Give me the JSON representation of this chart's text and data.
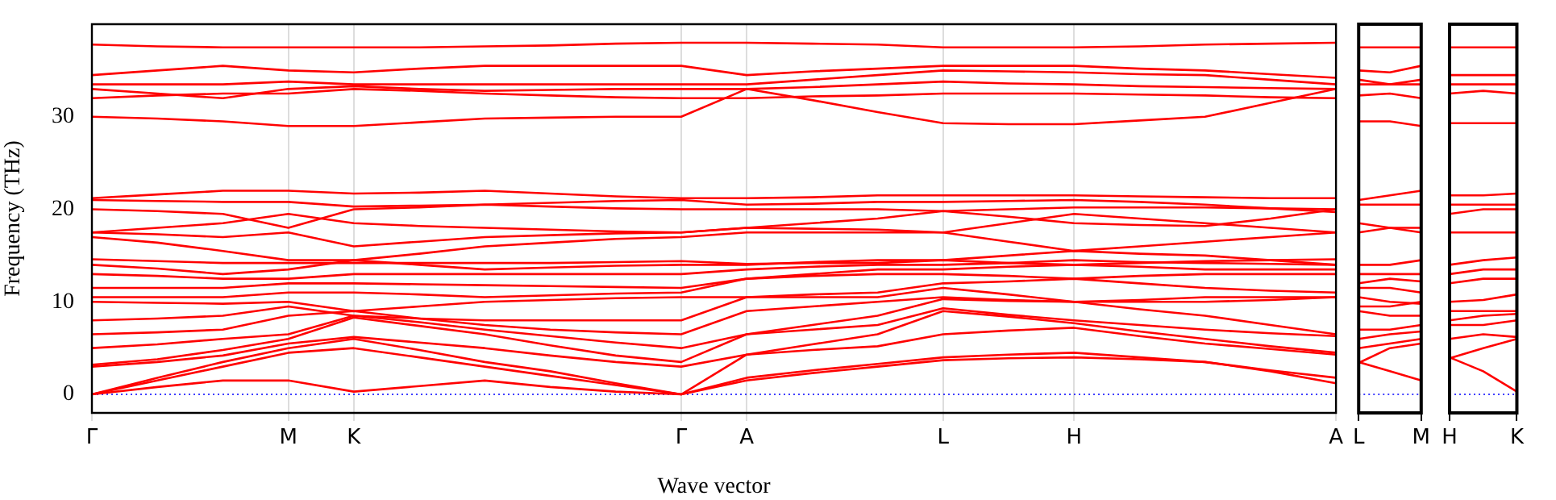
{
  "chart_data": [
    {
      "type": "line",
      "xlabel": "Wave vector",
      "ylabel": "Frequency (THz)",
      "categories": [
        "Γ",
        null,
        null,
        "M",
        "K",
        null,
        null,
        null,
        null,
        "Γ",
        "A",
        null,
        null,
        "L",
        null,
        "H",
        null,
        null,
        null,
        "A"
      ],
      "ylim": [
        -2,
        40
      ],
      "yticks": [
        0,
        10,
        20,
        30
      ],
      "grid": "x",
      "marker": "none",
      "line_style": "solid",
      "ref_lines": [
        {
          "axis": "y",
          "value": 0,
          "color": "#0000ff",
          "line_style": "dotted"
        }
      ],
      "series": [
        {
          "color": "#ff0000",
          "values": [
            0,
            0.8,
            1.5,
            1.5,
            0.3,
            0.9,
            1.5,
            0.8,
            0.3,
            0,
            1.5,
            2.3,
            3,
            3.7,
            3.9,
            4.0,
            3.8,
            3.5,
            2.5,
            1.2
          ]
        },
        {
          "color": "#ff0000",
          "values": [
            0,
            1.5,
            3,
            4.5,
            5.0,
            4,
            3,
            2,
            1,
            0,
            1.8,
            2.6,
            3.3,
            4.0,
            4.3,
            4.5,
            4,
            3.5,
            2.6,
            1.8
          ]
        },
        {
          "color": "#ff0000",
          "values": [
            0,
            1.8,
            3.5,
            5,
            6,
            4.8,
            3.5,
            2.5,
            1.2,
            0,
            4.3,
            4.8,
            5.2,
            6.5,
            6.9,
            7.2,
            6.3,
            5.5,
            4.9,
            4.3
          ]
        },
        {
          "color": "#ff0000",
          "values": [
            3,
            3.5,
            4.2,
            5.5,
            6.2,
            5.6,
            5,
            4.2,
            3.5,
            3,
            4.3,
            5.4,
            6.5,
            9,
            8.4,
            7.7,
            6.8,
            6,
            5.2,
            4.5
          ]
        },
        {
          "color": "#ff0000",
          "values": [
            3.2,
            3.8,
            4.8,
            6,
            8.3,
            7.4,
            6.5,
            5.3,
            4.2,
            3.5,
            6.5,
            7,
            7.5,
            9.3,
            8.6,
            8,
            7.5,
            7,
            6.6,
            6.3
          ]
        },
        {
          "color": "#ff0000",
          "values": [
            5,
            5.4,
            6,
            6.5,
            8.5,
            7.8,
            7,
            6.3,
            5.6,
            5,
            6.5,
            7.5,
            8.5,
            10.3,
            10.1,
            10,
            9.2,
            8.5,
            7.5,
            6.5
          ]
        },
        {
          "color": "#ff0000",
          "values": [
            6.5,
            6.7,
            7,
            8.5,
            9,
            8.2,
            7.5,
            7,
            6.7,
            6.5,
            9,
            9.5,
            10,
            10.5,
            10.2,
            10,
            10,
            10,
            10.2,
            10.5
          ]
        },
        {
          "color": "#ff0000",
          "values": [
            8,
            8.2,
            8.5,
            9.5,
            8.5,
            8.2,
            8,
            8,
            8,
            8,
            10.5,
            10.5,
            10.5,
            11.5,
            10.8,
            10,
            10.2,
            10.5,
            10.5,
            10.5
          ]
        },
        {
          "color": "#ff0000",
          "values": [
            10,
            9.9,
            9.8,
            10,
            9,
            9.5,
            10,
            10.2,
            10.4,
            10.5,
            10.5,
            10.8,
            11,
            12,
            12.2,
            12.5,
            12,
            11.5,
            11.2,
            11
          ]
        },
        {
          "color": "#ff0000",
          "values": [
            10.5,
            10.5,
            10.5,
            11,
            11,
            10.8,
            10.5,
            10.7,
            10.9,
            11,
            12.5,
            12.8,
            13,
            13,
            12.8,
            12.5,
            12.8,
            13,
            13,
            13
          ]
        },
        {
          "color": "#ff0000",
          "values": [
            11.5,
            11.5,
            11.5,
            12,
            12,
            11.9,
            11.8,
            11.7,
            11.6,
            11.5,
            12.5,
            13,
            13.5,
            13.5,
            13.8,
            14,
            13.8,
            13.5,
            13.5,
            13.5
          ]
        },
        {
          "color": "#ff0000",
          "values": [
            13,
            12.8,
            12.5,
            12.5,
            13,
            13,
            13,
            13,
            13,
            13,
            13.5,
            13.8,
            14,
            14,
            14.2,
            14.5,
            14.3,
            14.2,
            14.1,
            14
          ]
        },
        {
          "color": "#ff0000",
          "values": [
            14,
            13.6,
            13,
            13.5,
            14.5,
            14,
            13.5,
            13.7,
            13.9,
            14,
            14,
            14.3,
            14.5,
            14.5,
            15,
            15.5,
            15.2,
            15,
            14.5,
            14
          ]
        },
        {
          "color": "#ff0000",
          "values": [
            14.6,
            14.4,
            14.2,
            14.2,
            14.2,
            14.2,
            14.2,
            14.2,
            14.3,
            14.4,
            14.1,
            14.2,
            14.2,
            14.5,
            14.2,
            14,
            14.2,
            14.4,
            14.5,
            14.6
          ]
        },
        {
          "color": "#ff0000",
          "values": [
            17,
            16.4,
            15.5,
            14.5,
            14.5,
            15.2,
            16,
            16.4,
            16.8,
            17,
            17.5,
            17.5,
            17.5,
            17.5,
            16.5,
            15.5,
            16,
            16.5,
            17,
            17.5
          ]
        },
        {
          "color": "#ff0000",
          "values": [
            17.5,
            17.3,
            17,
            17.5,
            16,
            16.5,
            17,
            17.2,
            17.4,
            17.5,
            18,
            17.9,
            17.8,
            17.5,
            18.5,
            19.5,
            19,
            18.5,
            18,
            17.5
          ]
        },
        {
          "color": "#ff0000",
          "values": [
            17.5,
            18,
            18.5,
            19.5,
            18.5,
            18.2,
            18,
            17.8,
            17.6,
            17.5,
            18,
            18.5,
            19,
            19.8,
            19.2,
            18.5,
            18.3,
            18.2,
            19,
            20
          ]
        },
        {
          "color": "#ff0000",
          "values": [
            20,
            19.8,
            19.5,
            18,
            20,
            20.2,
            20.5,
            20.3,
            20.1,
            20,
            20,
            20,
            20,
            19.8,
            20,
            20.2,
            20.2,
            20.2,
            20.1,
            20
          ]
        },
        {
          "color": "#ff0000",
          "values": [
            21,
            20.9,
            20.8,
            20.8,
            20.3,
            20.4,
            20.5,
            20.7,
            20.9,
            21,
            20.5,
            20.6,
            20.8,
            20.8,
            20.9,
            21,
            20.8,
            20.5,
            20.1,
            19.7
          ]
        },
        {
          "color": "#ff0000",
          "values": [
            21.2,
            21.6,
            22,
            22,
            21.7,
            21.8,
            22,
            21.7,
            21.4,
            21.2,
            21.2,
            21.3,
            21.5,
            21.5,
            21.5,
            21.5,
            21.4,
            21.3,
            21.2,
            21.2
          ]
        },
        {
          "color": "#ff0000",
          "values": [
            30,
            29.8,
            29.5,
            29,
            29,
            29.4,
            29.8,
            29.9,
            30,
            30,
            33,
            31.8,
            30.5,
            29.3,
            29.2,
            29.2,
            29.6,
            30,
            31.5,
            33
          ]
        },
        {
          "color": "#ff0000",
          "values": [
            32,
            32.3,
            32.5,
            32.5,
            33,
            32.8,
            32.5,
            32.3,
            32.1,
            32,
            32,
            32.2,
            32.3,
            32.5,
            32.5,
            32.5,
            32.4,
            32.3,
            32.1,
            32
          ]
        },
        {
          "color": "#ff0000",
          "values": [
            33,
            32.5,
            32,
            33,
            33.3,
            33,
            32.8,
            32.9,
            33,
            33,
            33,
            33.2,
            33.5,
            33.8,
            33.6,
            33.5,
            33.3,
            33.2,
            33.1,
            33
          ]
        },
        {
          "color": "#ff0000",
          "values": [
            33.5,
            33.5,
            33.5,
            33.8,
            33.5,
            33.5,
            33.5,
            33.5,
            33.5,
            33.5,
            33.5,
            34,
            34.5,
            35,
            34.9,
            34.8,
            34.6,
            34.5,
            34,
            33.5
          ]
        },
        {
          "color": "#ff0000",
          "values": [
            34.5,
            35,
            35.5,
            35,
            34.8,
            35.2,
            35.5,
            35.5,
            35.5,
            35.5,
            34.5,
            34.9,
            35.2,
            35.5,
            35.5,
            35.5,
            35.2,
            35,
            34.6,
            34.2
          ]
        },
        {
          "color": "#ff0000",
          "values": [
            37.8,
            37.6,
            37.5,
            37.5,
            37.5,
            37.5,
            37.6,
            37.7,
            37.9,
            38,
            38,
            37.9,
            37.8,
            37.5,
            37.5,
            37.5,
            37.6,
            37.8,
            37.9,
            38
          ]
        }
      ]
    },
    {
      "type": "line",
      "categories": [
        "L",
        null,
        "M"
      ],
      "ylim": [
        -2,
        40
      ],
      "yticks": [
        0,
        10,
        20,
        30
      ],
      "tick_labels": "x",
      "marker": "none",
      "line_style": "solid",
      "ref_lines": [
        {
          "axis": "y",
          "value": 0,
          "color": "#0000ff",
          "line_style": "dotted"
        }
      ],
      "series": [
        {
          "color": "#ff0000",
          "values": [
            3.5,
            2.5,
            1.5
          ]
        },
        {
          "color": "#ff0000",
          "values": [
            3.4,
            5,
            5.5
          ]
        },
        {
          "color": "#ff0000",
          "values": [
            5,
            5.5,
            6
          ]
        },
        {
          "color": "#ff0000",
          "values": [
            6,
            6.5,
            6.8
          ]
        },
        {
          "color": "#ff0000",
          "values": [
            7,
            7,
            7.5
          ]
        },
        {
          "color": "#ff0000",
          "values": [
            9,
            8.5,
            8.5
          ]
        },
        {
          "color": "#ff0000",
          "values": [
            9.5,
            9.5,
            10
          ]
        },
        {
          "color": "#ff0000",
          "values": [
            10.5,
            10,
            9.8
          ]
        },
        {
          "color": "#ff0000",
          "values": [
            11.5,
            11.5,
            11
          ]
        },
        {
          "color": "#ff0000",
          "values": [
            12,
            12.5,
            12.2
          ]
        },
        {
          "color": "#ff0000",
          "values": [
            13,
            13,
            13
          ]
        },
        {
          "color": "#ff0000",
          "values": [
            14,
            14,
            14.5
          ]
        },
        {
          "color": "#ff0000",
          "values": [
            17.5,
            18,
            18
          ]
        },
        {
          "color": "#ff0000",
          "values": [
            18.5,
            18,
            17.5
          ]
        },
        {
          "color": "#ff0000",
          "values": [
            20.5,
            20.5,
            20.5
          ]
        },
        {
          "color": "#ff0000",
          "values": [
            21,
            21.5,
            22
          ]
        },
        {
          "color": "#ff0000",
          "values": [
            29.5,
            29.5,
            29
          ]
        },
        {
          "color": "#ff0000",
          "values": [
            32.3,
            32.5,
            32
          ]
        },
        {
          "color": "#ff0000",
          "values": [
            33.5,
            33.5,
            33.5
          ]
        },
        {
          "color": "#ff0000",
          "values": [
            34,
            33.5,
            34
          ]
        },
        {
          "color": "#ff0000",
          "values": [
            35,
            34.8,
            35.5
          ]
        },
        {
          "color": "#ff0000",
          "values": [
            37.5,
            37.5,
            37.5
          ]
        }
      ]
    },
    {
      "type": "line",
      "categories": [
        "H",
        null,
        "K"
      ],
      "ylim": [
        -2,
        40
      ],
      "yticks": [
        0,
        10,
        20,
        30
      ],
      "tick_labels": "x",
      "marker": "none",
      "line_style": "solid",
      "ref_lines": [
        {
          "axis": "y",
          "value": 0,
          "color": "#0000ff",
          "line_style": "dotted"
        }
      ],
      "series": [
        {
          "color": "#ff0000",
          "values": [
            4,
            2.5,
            0.3
          ]
        },
        {
          "color": "#ff0000",
          "values": [
            3.9,
            5,
            6
          ]
        },
        {
          "color": "#ff0000",
          "values": [
            6,
            6.5,
            6.2
          ]
        },
        {
          "color": "#ff0000",
          "values": [
            7.5,
            7.5,
            8
          ]
        },
        {
          "color": "#ff0000",
          "values": [
            8,
            8.5,
            8.7
          ]
        },
        {
          "color": "#ff0000",
          "values": [
            9,
            9,
            9
          ]
        },
        {
          "color": "#ff0000",
          "values": [
            10,
            10.2,
            10.8
          ]
        },
        {
          "color": "#ff0000",
          "values": [
            12,
            12.5,
            12.5
          ]
        },
        {
          "color": "#ff0000",
          "values": [
            13,
            13.5,
            13.5
          ]
        },
        {
          "color": "#ff0000",
          "values": [
            14,
            14.5,
            14.8
          ]
        },
        {
          "color": "#ff0000",
          "values": [
            17.5,
            17.5,
            17.5
          ]
        },
        {
          "color": "#ff0000",
          "values": [
            19.5,
            20,
            20
          ]
        },
        {
          "color": "#ff0000",
          "values": [
            20.5,
            20.5,
            20.5
          ]
        },
        {
          "color": "#ff0000",
          "values": [
            21.5,
            21.5,
            21.7
          ]
        },
        {
          "color": "#ff0000",
          "values": [
            29.3,
            29.3,
            29.3
          ]
        },
        {
          "color": "#ff0000",
          "values": [
            32.5,
            32.8,
            32.5
          ]
        },
        {
          "color": "#ff0000",
          "values": [
            33.5,
            33.5,
            33.5
          ]
        },
        {
          "color": "#ff0000",
          "values": [
            34.5,
            34.5,
            34.5
          ]
        },
        {
          "color": "#ff0000",
          "values": [
            37.5,
            37.5,
            37.5
          ]
        }
      ]
    }
  ]
}
